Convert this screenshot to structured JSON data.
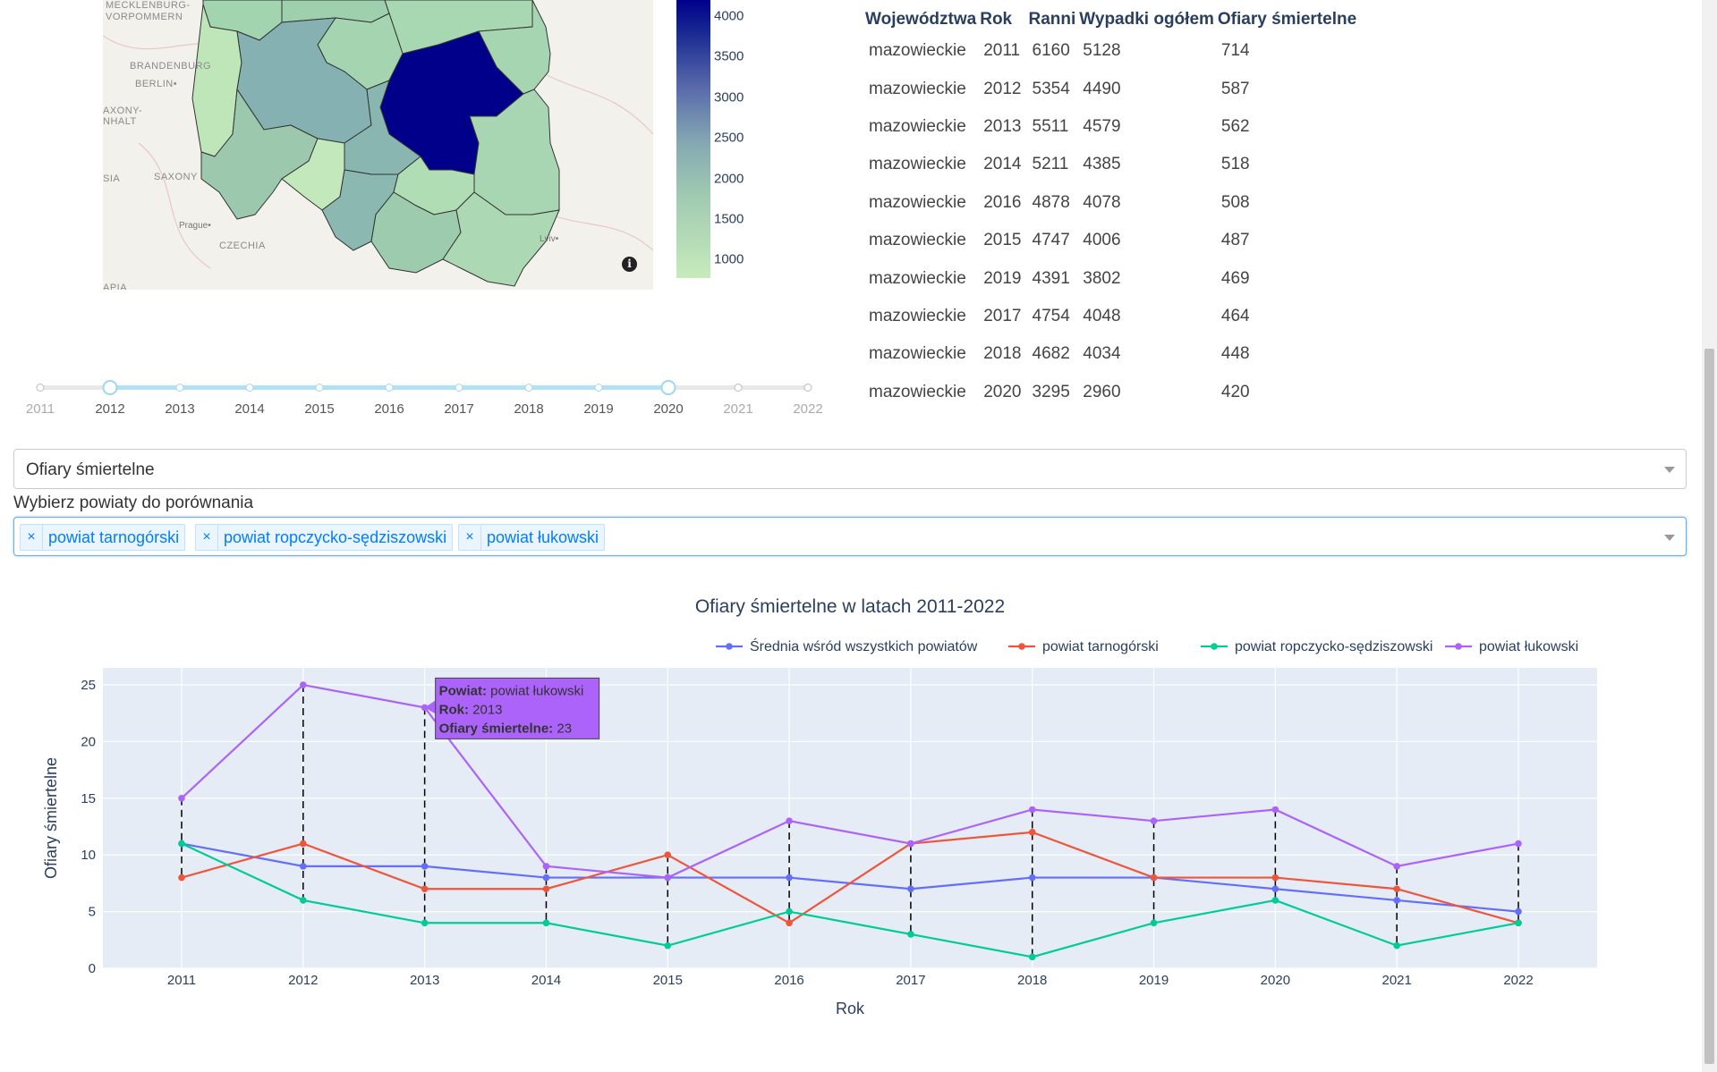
{
  "map": {
    "labels": [
      "MECKLENBURG-",
      "VORPOMMERN",
      "BRANDENBURG",
      "BERLIN•",
      "AXONY-",
      "NHALT",
      "SAXONY",
      "CZECHIA",
      "SIA",
      "APIA"
    ],
    "cities": [
      "Prague•",
      "Lviv•"
    ],
    "info_icon": "i"
  },
  "colorbar": {
    "ticks": [
      "4000",
      "3500",
      "3000",
      "2500",
      "2000",
      "1500",
      "1000"
    ],
    "colors": {
      "max": "#00008b",
      "mid": "#86aab2",
      "min": "#c7ebbc"
    }
  },
  "slider": {
    "years": [
      "2011",
      "2012",
      "2013",
      "2014",
      "2015",
      "2016",
      "2017",
      "2018",
      "2019",
      "2020",
      "2021",
      "2022"
    ],
    "range": [
      "2012",
      "2020"
    ]
  },
  "table": {
    "headers": [
      "Województwa",
      "Rok",
      "Ranni",
      "Wypadki ogółem",
      "Ofiary śmiertelne"
    ],
    "rows": [
      [
        "mazowieckie",
        "2011",
        "6160",
        "5128",
        "714"
      ],
      [
        "mazowieckie",
        "2012",
        "5354",
        "4490",
        "587"
      ],
      [
        "mazowieckie",
        "2013",
        "5511",
        "4579",
        "562"
      ],
      [
        "mazowieckie",
        "2014",
        "5211",
        "4385",
        "518"
      ],
      [
        "mazowieckie",
        "2016",
        "4878",
        "4078",
        "508"
      ],
      [
        "mazowieckie",
        "2015",
        "4747",
        "4006",
        "487"
      ],
      [
        "mazowieckie",
        "2019",
        "4391",
        "3802",
        "469"
      ],
      [
        "mazowieckie",
        "2017",
        "4754",
        "4048",
        "464"
      ],
      [
        "mazowieckie",
        "2018",
        "4682",
        "4034",
        "448"
      ],
      [
        "mazowieckie",
        "2020",
        "3295",
        "2960",
        "420"
      ]
    ]
  },
  "metric_select": {
    "value": "Ofiary śmiertelne"
  },
  "compare": {
    "label": "Wybierz powiaty do porównania",
    "remove_symbol": "×",
    "chips": [
      "powiat tarnogórski",
      "powiat ropczycko-sędziszowski",
      "powiat łukowski"
    ]
  },
  "chart_data": {
    "type": "line",
    "title": "Ofiary śmiertelne w latach 2011-2022",
    "xlabel": "Rok",
    "ylabel": "Ofiary śmiertelne",
    "x": [
      2011,
      2012,
      2013,
      2014,
      2015,
      2016,
      2017,
      2018,
      2019,
      2020,
      2021,
      2022
    ],
    "ylim": [
      0,
      26.5
    ],
    "yticks": [
      0,
      5,
      10,
      15,
      20,
      25
    ],
    "legend_position": "top-right",
    "grid": true,
    "series": [
      {
        "name": "Średnia wśród wszystkich powiatów",
        "color": "#636efa",
        "values": [
          11,
          9,
          9,
          8,
          8,
          8,
          7,
          8,
          8,
          7,
          6,
          5
        ]
      },
      {
        "name": "powiat tarnogórski",
        "color": "#ef553b",
        "values": [
          8,
          11,
          7,
          7,
          10,
          4,
          11,
          12,
          8,
          8,
          7,
          4
        ]
      },
      {
        "name": "powiat ropczycko-sędziszowski",
        "color": "#00cc96",
        "values": [
          11,
          6,
          4,
          4,
          2,
          5,
          3,
          1,
          4,
          6,
          2,
          4
        ]
      },
      {
        "name": "powiat łukowski",
        "color": "#ab63fa",
        "values": [
          15,
          25,
          23,
          9,
          8,
          13,
          11,
          14,
          13,
          14,
          9,
          11
        ]
      }
    ],
    "tooltip": {
      "series_index": 3,
      "point_index": 2,
      "lines": [
        {
          "key": "Powiat:",
          "value": "powiat łukowski"
        },
        {
          "key": "Rok:",
          "value": "2013"
        },
        {
          "key": "Ofiary śmiertelne:",
          "value": "23"
        }
      ]
    }
  }
}
